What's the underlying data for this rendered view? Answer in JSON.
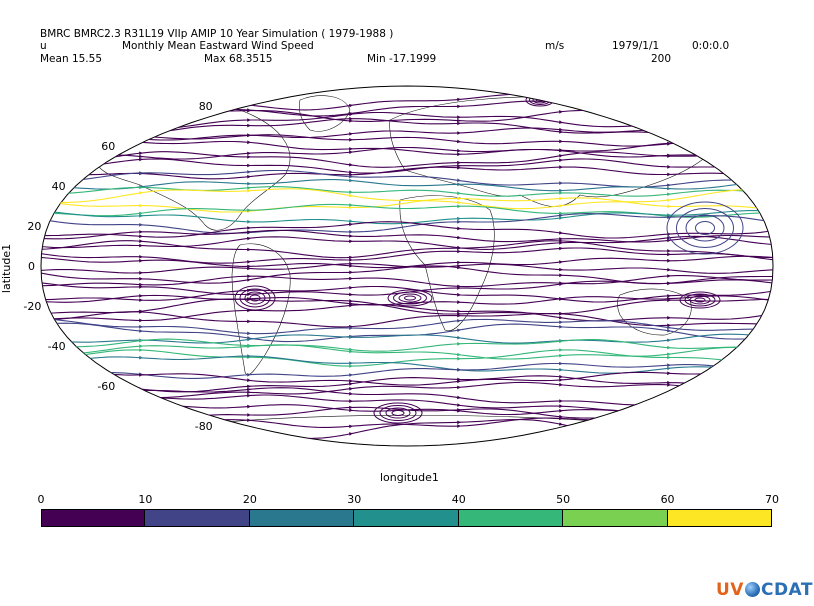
{
  "header": {
    "title": "BMRC BMRC2.3 R31L19 VIIp AMIP 10 Year Simulation ( 1979-1988 )",
    "variable": "u",
    "long_name": "Monthly Mean Eastward Wind Speed",
    "units": "m/s",
    "date": "1979/1/1",
    "time": "0:0:0.0",
    "level": "200",
    "mean": "Mean 15.55",
    "max": "Max 68.3515",
    "min": "Min -17.1999"
  },
  "axes": {
    "ylabel": "latitude1",
    "xlabel": "longitude1",
    "lat_ticks": [
      "80",
      "60",
      "40",
      "20",
      "0",
      "-20",
      "-40",
      "-60",
      "-80"
    ]
  },
  "colorbar": {
    "ticks": [
      "0",
      "10",
      "20",
      "30",
      "40",
      "50",
      "60",
      "70"
    ],
    "colors": [
      "#440154",
      "#414487",
      "#2a788e",
      "#22908c",
      "#35b779",
      "#7ad151",
      "#fde725"
    ]
  },
  "logo": {
    "text_a": "UV",
    "text_b": "CDAT"
  },
  "chart_data": {
    "type": "streamline-map",
    "projection": "Robinson",
    "title": "BMRC BMRC2.3 R31L19 VIIp AMIP 10 Year Simulation ( 1979-1988 )",
    "variable": "u",
    "units": "m/s",
    "level": 200,
    "date": "1979/1/1",
    "mean": 15.55,
    "max": 68.3515,
    "min": -17.1999,
    "lat_range": [
      -90,
      90
    ],
    "color_range": [
      0,
      70
    ],
    "color_levels": [
      0,
      10,
      20,
      30,
      40,
      50,
      60,
      70
    ]
  }
}
